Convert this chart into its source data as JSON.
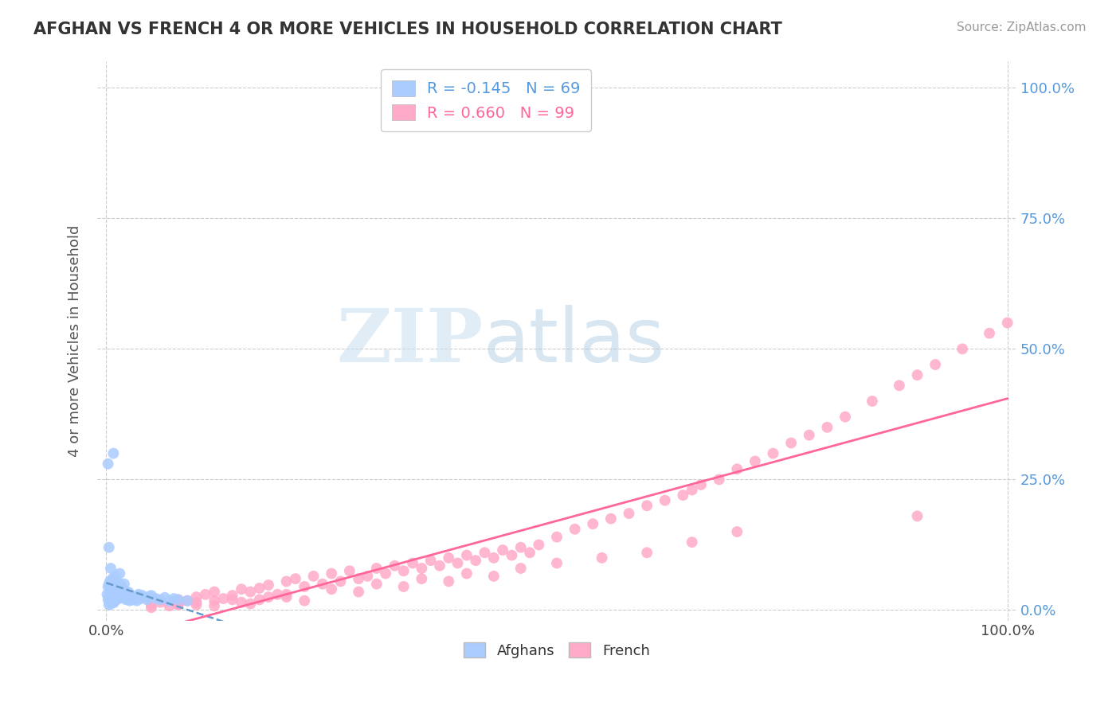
{
  "title": "AFGHAN VS FRENCH 4 OR MORE VEHICLES IN HOUSEHOLD CORRELATION CHART",
  "source": "Source: ZipAtlas.com",
  "ylabel": "4 or more Vehicles in Household",
  "ytick_labels": [
    "0.0%",
    "25.0%",
    "50.0%",
    "75.0%",
    "100.0%"
  ],
  "ytick_values": [
    0.0,
    0.25,
    0.5,
    0.75,
    1.0
  ],
  "xlim": [
    -0.01,
    1.01
  ],
  "ylim": [
    -0.02,
    1.05
  ],
  "watermark_zip": "ZIP",
  "watermark_atlas": "atlas",
  "afghan_color": "#aaccff",
  "french_color": "#ffaac8",
  "afghan_R": -0.145,
  "afghan_N": 69,
  "french_R": 0.66,
  "french_N": 99,
  "afghan_line_color": "#6699cc",
  "french_line_color": "#ff6699",
  "grid_color": "#cccccc",
  "background_color": "#ffffff",
  "afghans_scatter_x": [
    0.001,
    0.002,
    0.002,
    0.003,
    0.003,
    0.003,
    0.004,
    0.004,
    0.004,
    0.005,
    0.005,
    0.005,
    0.006,
    0.006,
    0.007,
    0.007,
    0.007,
    0.008,
    0.008,
    0.009,
    0.009,
    0.01,
    0.01,
    0.011,
    0.011,
    0.012,
    0.013,
    0.014,
    0.015,
    0.016,
    0.016,
    0.017,
    0.018,
    0.019,
    0.02,
    0.021,
    0.022,
    0.023,
    0.024,
    0.025,
    0.026,
    0.027,
    0.028,
    0.03,
    0.032,
    0.034,
    0.036,
    0.038,
    0.04,
    0.042,
    0.045,
    0.048,
    0.05,
    0.055,
    0.06,
    0.065,
    0.07,
    0.075,
    0.08,
    0.09,
    0.002,
    0.003,
    0.005,
    0.007,
    0.008,
    0.01,
    0.012,
    0.015,
    0.02
  ],
  "afghans_scatter_y": [
    0.03,
    0.02,
    0.045,
    0.01,
    0.025,
    0.05,
    0.015,
    0.035,
    0.055,
    0.012,
    0.028,
    0.042,
    0.018,
    0.038,
    0.022,
    0.04,
    0.058,
    0.014,
    0.032,
    0.016,
    0.034,
    0.024,
    0.044,
    0.02,
    0.038,
    0.026,
    0.03,
    0.022,
    0.036,
    0.028,
    0.048,
    0.032,
    0.024,
    0.04,
    0.028,
    0.036,
    0.02,
    0.03,
    0.022,
    0.034,
    0.018,
    0.028,
    0.024,
    0.02,
    0.026,
    0.018,
    0.03,
    0.022,
    0.028,
    0.024,
    0.02,
    0.026,
    0.028,
    0.022,
    0.02,
    0.024,
    0.018,
    0.022,
    0.02,
    0.018,
    0.28,
    0.12,
    0.08,
    0.06,
    0.3,
    0.065,
    0.055,
    0.07,
    0.05
  ],
  "french_scatter_x": [
    0.05,
    0.06,
    0.07,
    0.08,
    0.08,
    0.09,
    0.1,
    0.1,
    0.11,
    0.12,
    0.12,
    0.13,
    0.14,
    0.15,
    0.15,
    0.16,
    0.17,
    0.17,
    0.18,
    0.19,
    0.2,
    0.2,
    0.21,
    0.22,
    0.23,
    0.24,
    0.25,
    0.26,
    0.27,
    0.28,
    0.29,
    0.3,
    0.31,
    0.32,
    0.33,
    0.34,
    0.35,
    0.36,
    0.37,
    0.38,
    0.39,
    0.4,
    0.41,
    0.42,
    0.43,
    0.44,
    0.45,
    0.46,
    0.47,
    0.48,
    0.5,
    0.52,
    0.54,
    0.56,
    0.58,
    0.6,
    0.62,
    0.64,
    0.65,
    0.66,
    0.68,
    0.7,
    0.72,
    0.74,
    0.76,
    0.78,
    0.8,
    0.82,
    0.85,
    0.88,
    0.9,
    0.92,
    0.95,
    0.98,
    1.0,
    0.05,
    0.08,
    0.1,
    0.12,
    0.14,
    0.16,
    0.18,
    0.2,
    0.22,
    0.25,
    0.28,
    0.3,
    0.33,
    0.35,
    0.38,
    0.4,
    0.43,
    0.46,
    0.5,
    0.55,
    0.6,
    0.65,
    0.7,
    0.9
  ],
  "french_scatter_y": [
    0.01,
    0.015,
    0.008,
    0.02,
    0.012,
    0.018,
    0.025,
    0.01,
    0.03,
    0.018,
    0.035,
    0.022,
    0.028,
    0.04,
    0.015,
    0.035,
    0.042,
    0.02,
    0.048,
    0.03,
    0.055,
    0.025,
    0.06,
    0.045,
    0.065,
    0.05,
    0.07,
    0.055,
    0.075,
    0.06,
    0.065,
    0.08,
    0.07,
    0.085,
    0.075,
    0.09,
    0.08,
    0.095,
    0.085,
    0.1,
    0.09,
    0.105,
    0.095,
    0.11,
    0.1,
    0.115,
    0.105,
    0.12,
    0.11,
    0.125,
    0.14,
    0.155,
    0.165,
    0.175,
    0.185,
    0.2,
    0.21,
    0.22,
    0.23,
    0.24,
    0.25,
    0.27,
    0.285,
    0.3,
    0.32,
    0.335,
    0.35,
    0.37,
    0.4,
    0.43,
    0.45,
    0.47,
    0.5,
    0.53,
    0.55,
    0.005,
    0.01,
    0.015,
    0.008,
    0.02,
    0.012,
    0.025,
    0.03,
    0.018,
    0.04,
    0.035,
    0.05,
    0.045,
    0.06,
    0.055,
    0.07,
    0.065,
    0.08,
    0.09,
    0.1,
    0.11,
    0.13,
    0.15,
    0.18
  ]
}
